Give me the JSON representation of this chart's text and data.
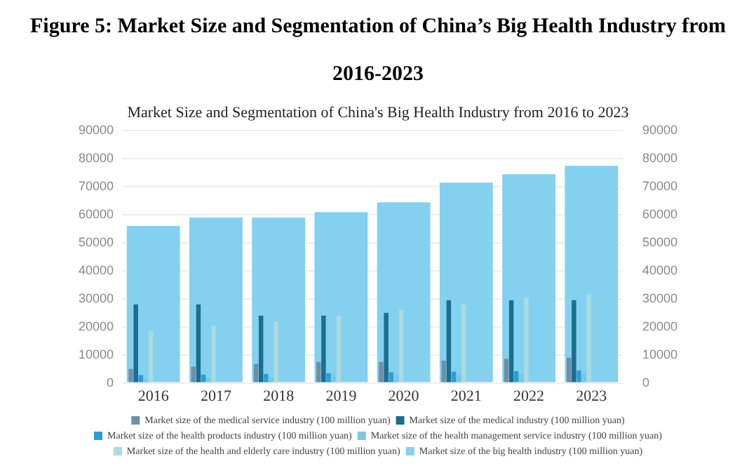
{
  "chart_data": {
    "type": "bar",
    "title": "Figure 5: Market Size and Segmentation of China’s Big Health Industry from 2016-2023",
    "subtitle": "Market Size and Segmentation of China's Big Health Industry from 2016 to 2023",
    "categories": [
      "2016",
      "2017",
      "2018",
      "2019",
      "2020",
      "2021",
      "2022",
      "2023"
    ],
    "series": [
      {
        "name": "Market size of the medical service industry (100 million yuan)",
        "color": "#6e8fa6",
        "values": [
          5000,
          5800,
          6800,
          7500,
          7500,
          8000,
          8600,
          9000
        ]
      },
      {
        "name": "Market size of the medical industry (100 million yuan)",
        "color": "#1a6e90",
        "values": [
          28000,
          28000,
          24000,
          24000,
          25000,
          29500,
          29500,
          29500
        ]
      },
      {
        "name": "Market size of the health products industry (100 million yuan)",
        "color": "#2a9fd0",
        "values": [
          2800,
          3000,
          3200,
          3500,
          3800,
          4000,
          4200,
          4500
        ]
      },
      {
        "name": "Market size of the health management service industry (100 million yuan)",
        "color": "#7cc6e6",
        "values": [
          1200,
          1800,
          2000,
          2500,
          2800,
          3000,
          3200,
          3500
        ]
      },
      {
        "name": "Market size of the health and elderly care industry (100 million yuan)",
        "color": "#a9dbe0",
        "values": [
          18500,
          20500,
          22000,
          24000,
          26000,
          28000,
          30500,
          31500
        ]
      },
      {
        "name": "Market size of the big health industry (100 million yuan)",
        "color": "#84d0ef",
        "values": [
          56000,
          59000,
          59000,
          61000,
          64500,
          71500,
          74500,
          77500
        ]
      }
    ],
    "ylim": [
      0,
      90000
    ],
    "yticks": [
      0,
      10000,
      20000,
      30000,
      40000,
      50000,
      60000,
      70000,
      80000,
      90000
    ],
    "y2lim": [
      0,
      90000
    ],
    "y2ticks": [
      0,
      10000,
      20000,
      30000,
      40000,
      50000,
      60000,
      70000,
      80000,
      90000
    ],
    "grid": "y",
    "legend": "bottom"
  }
}
